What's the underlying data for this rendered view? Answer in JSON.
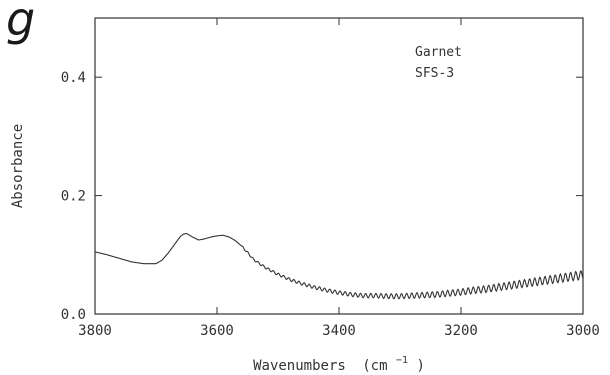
{
  "panel_label": "g",
  "chart_data": {
    "type": "line",
    "xlabel": "Wavenumbers",
    "xlabel_unit_base": "(cm",
    "xlabel_unit_sup": "−1",
    "xlabel_unit_close": ")",
    "ylabel": "Absorbance",
    "xlim": [
      3800,
      3000
    ],
    "ylim": [
      0.0,
      0.5
    ],
    "x_reversed": true,
    "x_ticks": [
      3800,
      3600,
      3400,
      3200,
      3000
    ],
    "x_tick_labels": [
      "3800",
      "3600",
      "3400",
      "3200",
      "3000"
    ],
    "y_ticks": [
      0.0,
      0.2,
      0.4
    ],
    "y_tick_labels": [
      "0.0",
      "0.2",
      "0.4"
    ],
    "annotations": [
      "Garnet",
      "SFS-3"
    ],
    "grid": false,
    "line_color": "#333333",
    "series": [
      {
        "x": [
          3800,
          3780,
          3760,
          3740,
          3720,
          3700,
          3690,
          3680,
          3670,
          3660,
          3655,
          3650,
          3640,
          3630,
          3620,
          3610,
          3600,
          3590,
          3580,
          3570,
          3560,
          3550,
          3540,
          3520,
          3500,
          3480,
          3460,
          3440,
          3420,
          3400,
          3380,
          3360,
          3340,
          3320,
          3300,
          3280,
          3260,
          3240,
          3220,
          3200,
          3180,
          3160,
          3140,
          3120,
          3100,
          3080,
          3060,
          3040,
          3020,
          3000
        ],
        "y": [
          0.105,
          0.1,
          0.094,
          0.088,
          0.085,
          0.085,
          0.091,
          0.103,
          0.117,
          0.131,
          0.135,
          0.136,
          0.13,
          0.125,
          0.127,
          0.13,
          0.132,
          0.133,
          0.13,
          0.124,
          0.115,
          0.104,
          0.092,
          0.078,
          0.067,
          0.058,
          0.051,
          0.045,
          0.04,
          0.036,
          0.033,
          0.031,
          0.031,
          0.03,
          0.03,
          0.031,
          0.032,
          0.033,
          0.035,
          0.037,
          0.04,
          0.042,
          0.045,
          0.048,
          0.051,
          0.054,
          0.057,
          0.06,
          0.063,
          0.066
        ]
      }
    ]
  }
}
